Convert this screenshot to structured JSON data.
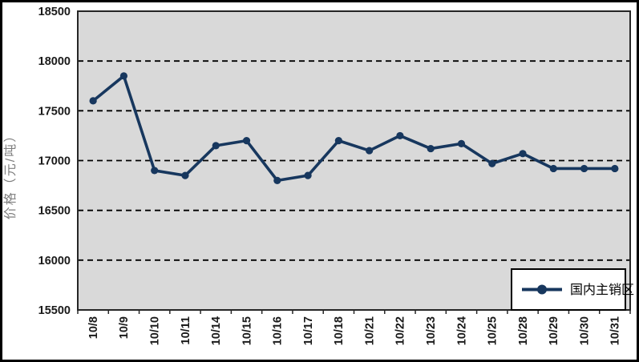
{
  "window": {
    "background": "#ffffff",
    "frame_border_color": "#000000"
  },
  "chart_data": {
    "type": "line",
    "title": "",
    "xlabel": "",
    "ylabel": "价格（元/吨）",
    "categories": [
      "10/8",
      "10/9",
      "10/10",
      "10/11",
      "10/14",
      "10/15",
      "10/16",
      "10/17",
      "10/18",
      "10/21",
      "10/22",
      "10/23",
      "10/24",
      "10/25",
      "10/28",
      "10/29",
      "10/30",
      "10/31"
    ],
    "series": [
      {
        "name": "国内主销区",
        "values": [
          17600,
          17850,
          16900,
          16850,
          17150,
          17200,
          16800,
          16850,
          17200,
          17100,
          17250,
          17120,
          17170,
          16970,
          17070,
          16920,
          16920,
          16920
        ]
      }
    ],
    "ylim": [
      15500,
      18500
    ],
    "ytick_step": 500,
    "yticks": [
      "15500",
      "16000",
      "16500",
      "17000",
      "17500",
      "18000",
      "18500"
    ],
    "grid": "horizontal-dashed",
    "legend_position": "bottom-right-inside",
    "marker": "circle",
    "colors": {
      "line": "#17375E",
      "marker": "#17375E",
      "plot_bg": "#D9D9D9",
      "plot_border": "#262626",
      "gridline": "#000000",
      "axis_text": "#1A1A1A",
      "ylabel_text": "#7F7F7F",
      "legend_bg": "#FFFFFF",
      "legend_border": "#000000",
      "legend_text": "#000000"
    }
  }
}
